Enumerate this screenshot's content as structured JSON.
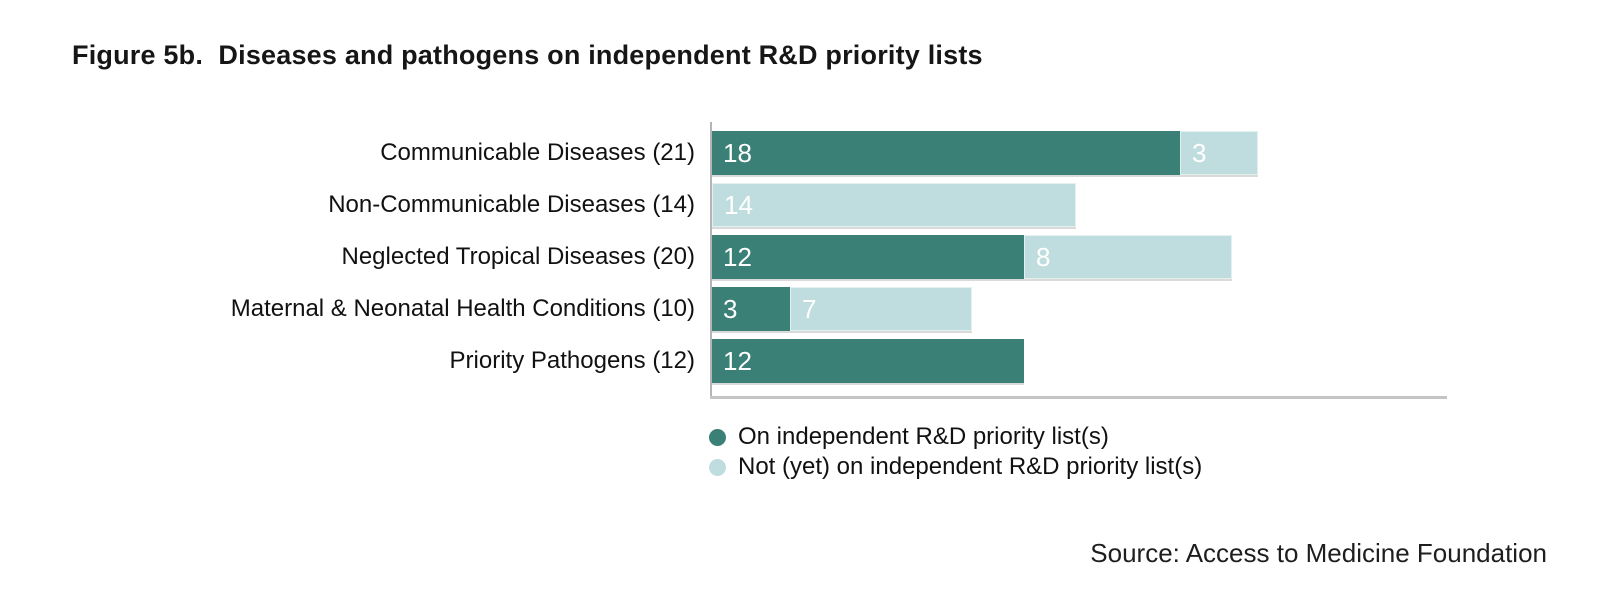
{
  "title": "Figure 5b.  Diseases and pathogens on independent R&D priority lists",
  "source": "Source: Access to Medicine Foundation",
  "colors": {
    "on_list": "#3A8077",
    "not_on_list": "#BFDDDE",
    "axis": "#BDBDBD",
    "text": "#111111"
  },
  "legend": {
    "items": [
      {
        "key": "on_list",
        "label": "On independent R&D priority list(s)",
        "color": "#3A8077"
      },
      {
        "key": "not_on_list",
        "label": "Not (yet) on independent R&D priority list(s)",
        "color": "#BFDDDE"
      }
    ],
    "position": "below-left"
  },
  "chart_data": {
    "type": "bar",
    "orientation": "horizontal",
    "stacked": true,
    "title": "Figure 5b.  Diseases and pathogens on independent R&D priority lists",
    "xlabel": "",
    "ylabel": "",
    "xlim": [
      0,
      28
    ],
    "grid": false,
    "categories": [
      "Communicable Diseases (21)",
      "Non-Communicable Diseases (14)",
      "Neglected Tropical Diseases (20)",
      "Maternal & Neonatal Health Conditions (10)",
      "Priority Pathogens (12)"
    ],
    "category_totals": [
      21,
      14,
      20,
      10,
      12
    ],
    "series": [
      {
        "name": "On independent R&D priority list(s)",
        "color": "#3A8077",
        "values": [
          18,
          0,
          12,
          3,
          12
        ]
      },
      {
        "name": "Not (yet) on independent R&D priority list(s)",
        "color": "#BFDDDE",
        "values": [
          3,
          14,
          8,
          7,
          0
        ]
      }
    ],
    "bar_value_labels_shown": true
  }
}
